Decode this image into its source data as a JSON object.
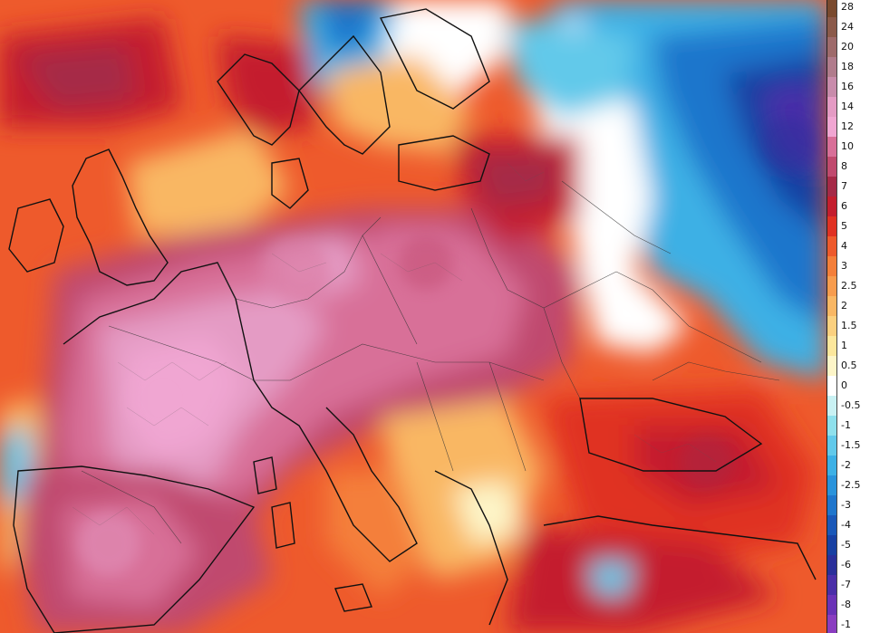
{
  "legend": {
    "items": [
      {
        "label": "28",
        "color": "#7a4a2e"
      },
      {
        "label": "24",
        "color": "#8b5a4a"
      },
      {
        "label": "20",
        "color": "#9e6b6b"
      },
      {
        "label": "18",
        "color": "#b07c8c"
      },
      {
        "label": "16",
        "color": "#c88cab"
      },
      {
        "label": "14",
        "color": "#e49bc4"
      },
      {
        "label": "12",
        "color": "#f0a6d2"
      },
      {
        "label": "10",
        "color": "#d86f98"
      },
      {
        "label": "8",
        "color": "#c04a6e"
      },
      {
        "label": "7",
        "color": "#a52a47"
      },
      {
        "label": "6",
        "color": "#c41e2e"
      },
      {
        "label": "5",
        "color": "#e03223"
      },
      {
        "label": "4",
        "color": "#ee5a2c"
      },
      {
        "label": "3",
        "color": "#f47f3a"
      },
      {
        "label": "2.5",
        "color": "#f79c4e"
      },
      {
        "label": "2",
        "color": "#f9b764"
      },
      {
        "label": "1.5",
        "color": "#fbd07f"
      },
      {
        "label": "1",
        "color": "#fce79c"
      },
      {
        "label": "0.5",
        "color": "#fdf5c8"
      },
      {
        "label": "0",
        "color": "#ffffff"
      },
      {
        "label": "-0.5",
        "color": "#c9f1f3"
      },
      {
        "label": "-1",
        "color": "#8fe0ec"
      },
      {
        "label": "-1.5",
        "color": "#62c9ea"
      },
      {
        "label": "-2",
        "color": "#3db0e5"
      },
      {
        "label": "-2.5",
        "color": "#2a93db"
      },
      {
        "label": "-3",
        "color": "#1f76cc"
      },
      {
        "label": "-4",
        "color": "#1a58b8"
      },
      {
        "label": "-5",
        "color": "#1840a2"
      },
      {
        "label": "-6",
        "color": "#2a2f9a"
      },
      {
        "label": "-7",
        "color": "#4a2ea8"
      },
      {
        "label": "-8",
        "color": "#6a32b6"
      },
      {
        "label": "-1",
        "color": "#8a3dc0"
      }
    ]
  },
  "map": {
    "colors": {
      "hot_core": "#e49bc4",
      "hot_ring": "#c04a6e",
      "warm": "#e03223",
      "mild": "#f9b764",
      "neutral": "#ffffff",
      "cool": "#3db0e5",
      "cold": "#1840a2",
      "coast_line": "#111111",
      "border_line": "#333333"
    }
  }
}
